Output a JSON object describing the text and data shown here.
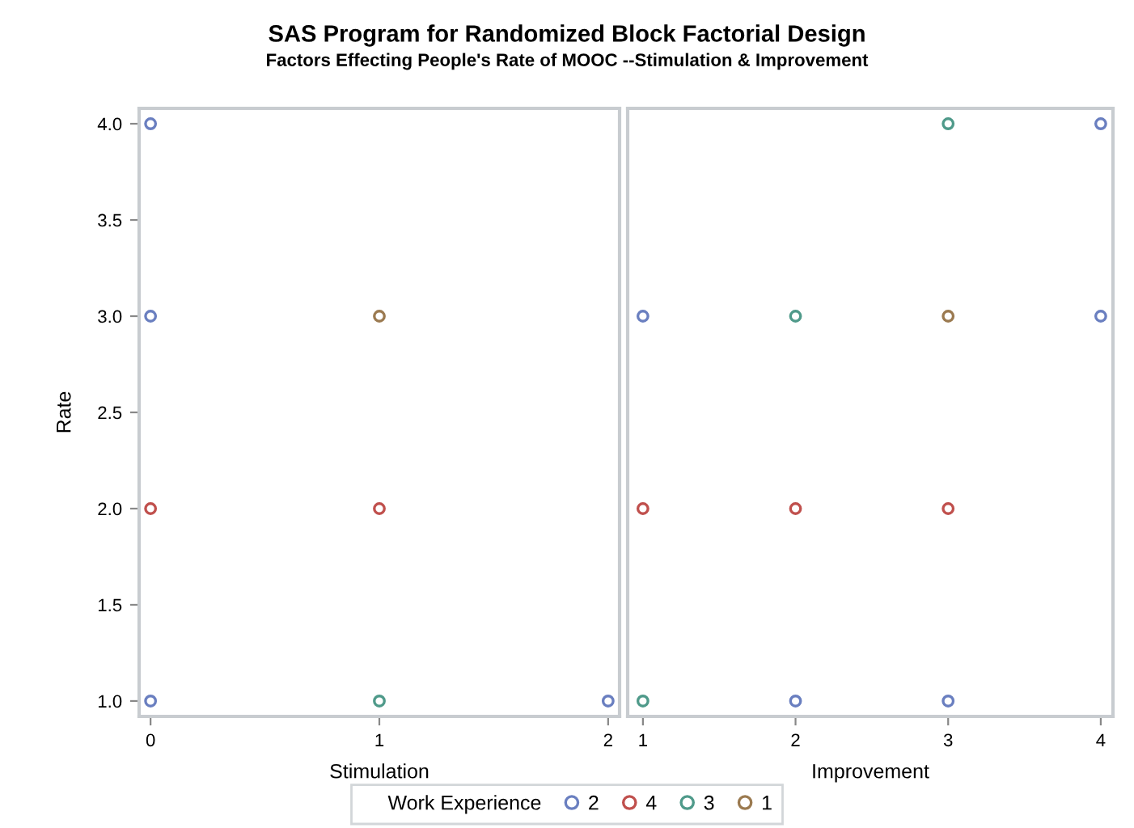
{
  "chart_data": [
    {
      "type": "scatter",
      "title": "SAS Program for Randomized Block Factorial Design",
      "subtitle": "Factors Effecting People's Rate of MOOC --Stimulation & Improvement",
      "xlabel": "Stimulation",
      "ylabel": "Rate",
      "xlim": [
        -0.05,
        2.05
      ],
      "xticks": [
        0,
        1,
        2
      ],
      "ylim": [
        0.92,
        4.08
      ],
      "yticks": [
        {
          "value": 1,
          "label": "1.0"
        },
        {
          "value": 1.5,
          "label": "1.5"
        },
        {
          "value": 2.0,
          "label": "2.0"
        },
        {
          "value": 2.5,
          "label": "2.5"
        },
        {
          "value": 3.0,
          "label": "3.0"
        },
        {
          "value": 3.5,
          "label": "3.5"
        },
        {
          "value": 4.0,
          "label": "4.0"
        }
      ],
      "marker": "circle",
      "grid": false,
      "legend": "bottom",
      "legend_title": "Work Experience",
      "series": [
        {
          "name": "2",
          "color": "#6a7fc0",
          "x": [
            0,
            0,
            0,
            2
          ],
          "values": [
            4,
            3,
            1,
            1
          ]
        },
        {
          "name": "4",
          "color": "#c0504d",
          "x": [
            0,
            1
          ],
          "values": [
            2,
            2
          ]
        },
        {
          "name": "3",
          "color": "#4f9a8a",
          "x": [
            1
          ],
          "values": [
            1
          ]
        },
        {
          "name": "1",
          "color": "#9b7a50",
          "x": [
            1
          ],
          "values": [
            3
          ]
        }
      ]
    },
    {
      "type": "scatter",
      "xlabel": "Improvement",
      "xlim": [
        0.9,
        4.08
      ],
      "xticks": [
        1,
        2,
        3,
        4
      ],
      "ylim": [
        0.92,
        4.08
      ],
      "tick_labels": "x",
      "marker": "circle",
      "grid": false,
      "legend": false,
      "series": [
        {
          "color": "#6a7fc0",
          "x": [
            1,
            2,
            3,
            4,
            4
          ],
          "values": [
            3,
            1,
            1,
            4,
            3
          ]
        },
        {
          "color": "#c0504d",
          "x": [
            1,
            2,
            3
          ],
          "values": [
            2,
            2,
            2
          ]
        },
        {
          "color": "#4f9a8a",
          "x": [
            1,
            2,
            3
          ],
          "values": [
            1,
            3,
            4
          ]
        },
        {
          "color": "#9b7a50",
          "x": [
            3
          ],
          "values": [
            3
          ]
        }
      ]
    }
  ]
}
